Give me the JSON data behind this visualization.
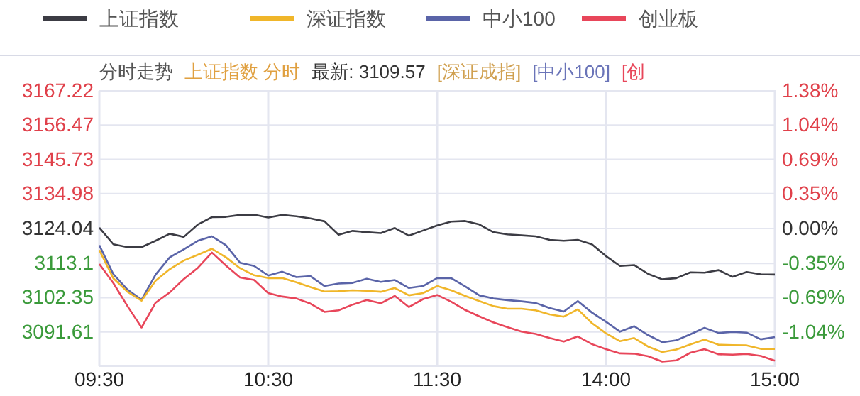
{
  "chart_data": {
    "type": "line",
    "subtitle": "分时走势",
    "annotations": [
      "上证指数 分时",
      "最新: 3109.57",
      "[深证成指]",
      "[中小100]",
      "[创"
    ],
    "categories": [
      "09:30",
      null,
      null,
      null,
      null,
      null,
      null,
      null,
      null,
      null,
      null,
      null,
      "10:30",
      null,
      null,
      null,
      null,
      null,
      null,
      null,
      null,
      null,
      null,
      null,
      "11:30",
      null,
      null,
      null,
      null,
      null,
      null,
      null,
      null,
      null,
      null,
      null,
      "14:00",
      null,
      null,
      null,
      null,
      null,
      null,
      null,
      null,
      null,
      null,
      null,
      "15:00"
    ],
    "ylim": [
      3080.87,
      3167.22
    ],
    "yticks": [
      {
        "value": 3080.87,
        "label": null
      },
      3091.61,
      3102.35,
      3113.1,
      3124.04,
      3134.98,
      3145.73,
      3156.47,
      3167.22
    ],
    "y2lim": [
      -1.38,
      1.38
    ],
    "y2ticks": [
      {
        "value": -1.04,
        "label": "-1.04%"
      },
      {
        "value": -0.69,
        "label": "-0.69%"
      },
      {
        "value": -0.35,
        "label": "-0.35%"
      },
      {
        "value": 0,
        "label": "0.00%"
      },
      {
        "value": 0.35,
        "label": "0.35%"
      },
      {
        "value": 0.69,
        "label": "0.69%"
      },
      {
        "value": 1.04,
        "label": "1.04%"
      },
      {
        "value": 1.38,
        "label": "1.38%"
      }
    ],
    "grid": true,
    "legend": "top",
    "line_style": "solid",
    "marker": "none",
    "series": [
      {
        "name": "上证指数",
        "color": "#3c3c44",
        "values": [
          3124.3,
          3119.1,
          3118.2,
          3118.2,
          3120.2,
          3122.4,
          3121.4,
          3125.3,
          3127.6,
          3127.7,
          3128.3,
          3128.4,
          3127.5,
          3128.3,
          3127.9,
          3127.2,
          3126.3,
          3122.1,
          3123.3,
          3122.9,
          3122.6,
          3124.2,
          3121.8,
          3123.4,
          3125.0,
          3126.2,
          3126.4,
          3125.3,
          3122.9,
          3122.2,
          3121.9,
          3121.6,
          3120.5,
          3120.2,
          3120.5,
          3119.1,
          3115.4,
          3112.3,
          3112.6,
          3109.8,
          3108.1,
          3108.5,
          3110.3,
          3110.2,
          3111.0,
          3108.9,
          3110.4,
          3109.7,
          3109.6
        ]
      },
      {
        "name": "深证指数",
        "color": "#f0b62a",
        "values": [
          3117.3,
          3108.4,
          3104.2,
          3101.4,
          3107.7,
          3111.3,
          3114.0,
          3115.8,
          3117.7,
          3115.0,
          3111.6,
          3109.4,
          3108.5,
          3108.5,
          3107.2,
          3105.7,
          3104.3,
          3104.4,
          3104.7,
          3104.5,
          3104.2,
          3105.4,
          3103.1,
          3103.8,
          3106.0,
          3104.7,
          3102.9,
          3101.3,
          3099.7,
          3098.9,
          3098.9,
          3098.4,
          3097.1,
          3096.4,
          3098.7,
          3094.4,
          3091.2,
          3088.7,
          3089.7,
          3087.0,
          3085.3,
          3086.1,
          3087.7,
          3089.2,
          3087.6,
          3087.5,
          3087.4,
          3086.3,
          3086.3
        ]
      },
      {
        "name": "中小100",
        "color": "#5a64a8",
        "values": [
          3118.8,
          3109.7,
          3104.9,
          3101.7,
          3109.6,
          3115.0,
          3117.5,
          3120.2,
          3121.6,
          3118.8,
          3113.3,
          3112.3,
          3109.3,
          3110.5,
          3108.8,
          3109.1,
          3106.0,
          3106.8,
          3107.0,
          3108.3,
          3107.3,
          3107.9,
          3105.4,
          3106.0,
          3108.5,
          3108.5,
          3105.9,
          3103.1,
          3102.1,
          3101.6,
          3101.2,
          3100.7,
          3099.1,
          3098.0,
          3101.3,
          3097.7,
          3094.8,
          3091.7,
          3093.4,
          3090.6,
          3088.4,
          3089.0,
          3090.9,
          3092.9,
          3091.3,
          3091.6,
          3091.4,
          3089.3,
          3090.0
        ]
      },
      {
        "name": "创业板",
        "color": "#e8465a",
        "values": [
          3112.9,
          3106.9,
          3099.7,
          3093.0,
          3100.8,
          3104.0,
          3108.2,
          3111.7,
          3116.5,
          3112.4,
          3108.7,
          3107.9,
          3103.8,
          3102.7,
          3102.1,
          3100.5,
          3097.9,
          3098.4,
          3100.2,
          3101.6,
          3100.6,
          3102.9,
          3099.4,
          3101.9,
          3103.2,
          3101.1,
          3098.5,
          3096.5,
          3094.6,
          3093.1,
          3091.7,
          3091.0,
          3089.7,
          3088.6,
          3090.2,
          3087.8,
          3086.2,
          3084.9,
          3084.8,
          3084.0,
          3082.3,
          3082.7,
          3085.1,
          3086.2,
          3084.6,
          3084.5,
          3084.7,
          3084.1,
          3082.6
        ]
      }
    ]
  }
}
